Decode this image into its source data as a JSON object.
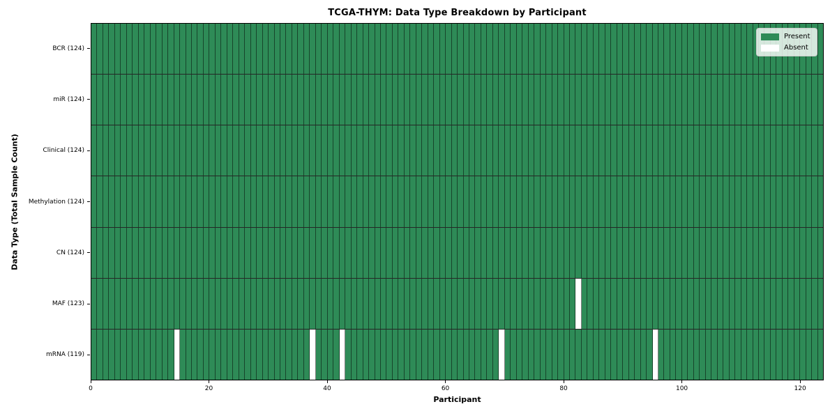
{
  "chart_data": {
    "type": "heatmap",
    "title": "TCGA-THYM: Data Type Breakdown by Participant",
    "xlabel": "Participant",
    "ylabel": "Data Type (Total Sample Count)",
    "n_participants": 124,
    "x_ticks": [
      0,
      20,
      40,
      60,
      80,
      100,
      120
    ],
    "x_range": [
      0,
      124
    ],
    "rows": [
      {
        "name": "BCR",
        "label": "BCR (124)",
        "present_count": 124,
        "absent_participants": []
      },
      {
        "name": "miR",
        "label": "miR (124)",
        "present_count": 124,
        "absent_participants": []
      },
      {
        "name": "Clinical",
        "label": "Clinical (124)",
        "present_count": 124,
        "absent_participants": []
      },
      {
        "name": "Methylation",
        "label": "Methylation (124)",
        "present_count": 124,
        "absent_participants": []
      },
      {
        "name": "CN",
        "label": "CN (124)",
        "present_count": 124,
        "absent_participants": []
      },
      {
        "name": "MAF",
        "label": "MAF (123)",
        "present_count": 123,
        "absent_participants": [
          82
        ]
      },
      {
        "name": "mRNA",
        "label": "mRNA (119)",
        "present_count": 119,
        "absent_participants": [
          14,
          37,
          42,
          69,
          95
        ]
      }
    ],
    "legend": [
      {
        "label": "Present",
        "color": "#2e8b57"
      },
      {
        "label": "Absent",
        "color": "#ffffff"
      }
    ],
    "legend_position": "upper right",
    "colors": {
      "present": "#2e8b57",
      "absent": "#ffffff",
      "cell_edge": "rgba(0,0,0,0.5)",
      "row_divider": "rgba(0,0,0,0.85)",
      "spine": "#000000",
      "background": "#ffffff"
    },
    "grid": "cell-borders"
  }
}
